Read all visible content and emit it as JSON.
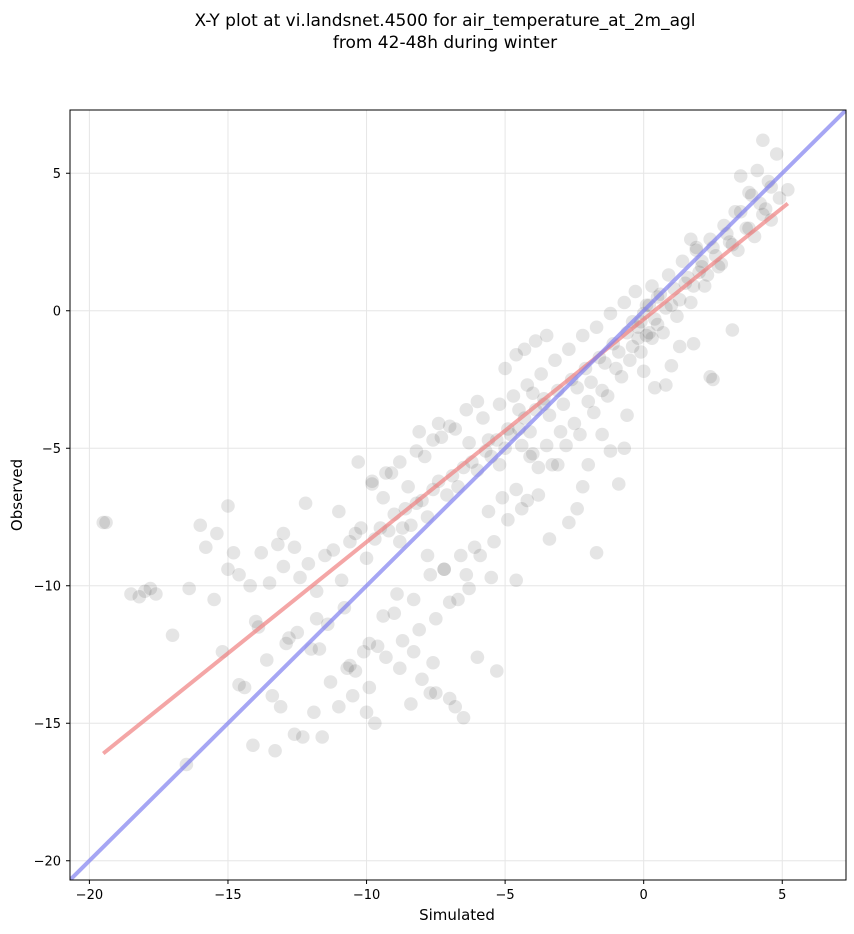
{
  "chart_data": {
    "type": "scatter",
    "title": [
      "X-Y plot at vi.landsnet.4500 for air_temperature_at_2m_agl",
      "from 42-48h during winter"
    ],
    "xlabel": "Simulated",
    "ylabel": "Observed",
    "xlim": [
      -20.7,
      7.3
    ],
    "ylim": [
      -20.7,
      7.3
    ],
    "xticks": [
      -20,
      -15,
      -10,
      -5,
      0,
      5
    ],
    "yticks": [
      -20,
      -15,
      -10,
      -5,
      0,
      5
    ],
    "xtick_labels": [
      "−20",
      "−15",
      "−10",
      "−5",
      "0",
      "5"
    ],
    "ytick_labels": [
      "−20",
      "−15",
      "−10",
      "−5",
      "0",
      "5"
    ],
    "grid": true,
    "points": {
      "color": "#000000",
      "opacity": 0.1,
      "x": [
        -19.5,
        -18.2,
        -17.6,
        -16.4,
        -16.0,
        -15.8,
        -15.4,
        -15.0,
        -14.6,
        -14.2,
        -13.8,
        -13.5,
        -13.2,
        -13.0,
        -12.6,
        -12.4,
        -12.1,
        -11.8,
        -11.5,
        -11.2,
        -10.9,
        -10.6,
        -10.4,
        -10.2,
        -10.0,
        -9.7,
        -9.5,
        -9.2,
        -9.0,
        -8.8,
        -8.6,
        -8.4,
        -8.2,
        -8.0,
        -7.8,
        -7.6,
        -7.4,
        -7.1,
        -6.9,
        -6.7,
        -6.5,
        -6.2,
        -6.0,
        -5.7,
        -5.5,
        -5.3,
        -5.0,
        -4.8,
        -4.5,
        -4.3,
        -4.1,
        -3.9,
        -3.6,
        -3.4,
        -3.1,
        -2.9,
        -2.6,
        -2.4,
        -2.1,
        -1.9,
        -1.6,
        -1.4,
        -1.1,
        -0.9,
        -0.6,
        -0.4,
        -0.2,
        0.0,
        0.2,
        0.4,
        0.6,
        0.8,
        1.1,
        1.3,
        1.6,
        1.8,
        2.1,
        2.3,
        2.6,
        2.8,
        3.1,
        3.4,
        3.7,
        4.0,
        4.3,
        4.6,
        4.9,
        5.2,
        -19.4,
        -18.0,
        -17.0,
        -15.5,
        -14.8,
        -14.0,
        -13.6,
        -12.8,
        -12.0,
        -11.4,
        -10.8,
        -10.1,
        -9.4,
        -8.9,
        -8.3,
        -7.7,
        -7.2,
        -6.6,
        -6.1,
        -5.6,
        -5.1,
        -4.6,
        -4.0,
        -3.5,
        -3.0,
        -2.5,
        -2.0,
        -1.5,
        -1.0,
        -0.5,
        0.1,
        0.5,
        1.0,
        1.5,
        2.0,
        2.5,
        3.0,
        3.5,
        4.2,
        4.8,
        -15.0,
        -13.0,
        -12.2,
        -11.0,
        -10.3,
        -9.8,
        -9.1,
        -8.5,
        -7.9,
        -7.3,
        -6.8,
        -6.3,
        -5.8,
        -5.2,
        -4.7,
        -4.2,
        -3.7,
        -3.2,
        -2.7,
        -2.2,
        -1.7,
        -1.2,
        -0.7,
        -0.3,
        0.3,
        0.9,
        1.4,
        1.9,
        2.4,
        2.9,
        3.3,
        3.9,
        4.5,
        -12.5,
        -11.7,
        -10.7,
        -9.9,
        -9.3,
        -8.7,
        -8.1,
        -7.5,
        -7.0,
        -6.4,
        -5.9,
        -5.4,
        -4.9,
        -4.4,
        -3.8,
        -3.3,
        -2.8,
        -2.3,
        -1.8,
        -1.3,
        -0.8,
        -0.1,
        0.7,
        1.2,
        1.7,
        2.2,
        2.7,
        3.2,
        3.8,
        4.4,
        -14.4,
        -13.4,
        -11.9,
        -10.5,
        -9.6,
        -8.8,
        -8.0,
        -7.5,
        -6.8,
        -6.0,
        -5.3,
        -4.6,
        -4.2,
        -3.4,
        -2.7,
        -2.0,
        -1.2,
        -0.6,
        0.0,
        0.4,
        1.0,
        1.8,
        2.5,
        3.2,
        -11.0,
        -10.0,
        -9.0,
        -8.3,
        -7.6,
        -7.0,
        -6.5,
        -11.8,
        -12.3,
        -13.1,
        -9.4,
        -8.7,
        -7.8,
        -7.2,
        -6.7,
        -9.9,
        -10.6,
        -11.3,
        -12.6,
        -13.3,
        -14.1,
        -8.1,
        -7.4,
        -4.4,
        -4.1,
        -3.8,
        -4.9,
        -5.2,
        -5.6,
        -4.5,
        -4.0,
        -3.6,
        -0.2,
        0.1,
        0.3,
        -0.4,
        -0.1,
        0.2,
        0.5,
        1.9,
        2.1,
        1.7,
        3.5,
        3.8,
        4.1,
        4.6,
        4.3,
        -16.5,
        -17.8,
        -18.5,
        -14.6,
        -15.2,
        -13.9,
        -12.9,
        -11.6,
        -10.4,
        -9.7,
        -8.4,
        -7.7,
        -6.3,
        -5.5,
        -2.4,
        -1.7,
        -0.9,
        -3.1,
        -2.2,
        -1.5,
        -0.7,
        0.8,
        1.3,
        2.4,
        -6.0,
        -5.0,
        -4.6,
        -4.3,
        -3.9,
        -3.5,
        -6.4,
        -7.0,
        -7.6,
        -8.2,
        -8.8,
        -9.3,
        -9.8
      ],
      "y": [
        -7.7,
        -10.4,
        -10.3,
        -10.1,
        -7.8,
        -8.6,
        -8.1,
        -9.4,
        -9.6,
        -10.0,
        -8.8,
        -9.9,
        -8.5,
        -9.3,
        -8.6,
        -9.7,
        -9.2,
        -10.2,
        -8.9,
        -8.7,
        -9.8,
        -8.4,
        -8.1,
        -7.9,
        -9.0,
        -8.3,
        -7.9,
        -8.0,
        -7.4,
        -8.4,
        -7.2,
        -7.8,
        -7.0,
        -6.9,
        -7.5,
        -6.5,
        -6.2,
        -6.7,
        -6.0,
        -6.4,
        -5.7,
        -5.5,
        -5.8,
        -5.1,
        -5.3,
        -4.7,
        -5.0,
        -4.5,
        -4.3,
        -3.9,
        -4.4,
        -3.6,
        -3.2,
        -3.8,
        -2.9,
        -3.4,
        -2.5,
        -2.8,
        -2.1,
        -2.6,
        -1.7,
        -1.9,
        -1.2,
        -1.5,
        -0.8,
        -0.4,
        -1.0,
        -0.1,
        0.2,
        -0.3,
        0.6,
        0.1,
        0.8,
        0.4,
        1.2,
        0.9,
        1.6,
        1.3,
        2.0,
        1.7,
        2.5,
        2.2,
        3.0,
        2.7,
        3.5,
        3.3,
        4.1,
        4.4,
        -7.7,
        -10.2,
        -11.8,
        -10.5,
        -8.8,
        -11.3,
        -12.7,
        -11.9,
        -12.3,
        -11.4,
        -10.8,
        -12.4,
        -11.1,
        -10.3,
        -10.5,
        -9.6,
        -9.4,
        -8.9,
        -8.6,
        -7.3,
        -6.8,
        -6.5,
        -5.2,
        -4.9,
        -4.4,
        -4.1,
        -3.3,
        -2.9,
        -2.1,
        -1.8,
        -0.9,
        -0.5,
        0.2,
        1.0,
        1.4,
        2.3,
        2.8,
        3.6,
        3.9,
        5.7,
        -7.1,
        -8.1,
        -7.0,
        -7.3,
        -5.5,
        -6.2,
        -5.9,
        -6.4,
        -5.3,
        -4.6,
        -4.3,
        -4.8,
        -3.9,
        -3.4,
        -3.1,
        -2.7,
        -2.3,
        -1.8,
        -1.4,
        -0.9,
        -0.6,
        -0.1,
        0.3,
        0.7,
        0.9,
        1.3,
        1.8,
        2.2,
        2.6,
        3.1,
        3.6,
        4.2,
        4.7,
        -11.7,
        -12.3,
        -13.0,
        -13.7,
        -12.6,
        -12.0,
        -11.6,
        -11.2,
        -10.6,
        -9.6,
        -8.9,
        -8.4,
        -7.6,
        -7.2,
        -6.7,
        -5.6,
        -4.9,
        -4.5,
        -3.7,
        -3.1,
        -2.4,
        -1.5,
        -0.8,
        -0.2,
        0.3,
        0.9,
        1.6,
        2.4,
        3.0,
        3.7,
        -13.7,
        -14.0,
        -14.6,
        -14.0,
        -12.2,
        -13.0,
        -13.4,
        -13.9,
        -14.4,
        -12.6,
        -13.1,
        -9.8,
        -6.9,
        -8.3,
        -7.7,
        -5.6,
        -5.1,
        -3.8,
        -2.2,
        -2.8,
        -2.0,
        -1.2,
        -2.5,
        -0.7,
        -14.4,
        -14.6,
        -11.0,
        -12.4,
        -12.8,
        -14.1,
        -14.8,
        -11.2,
        -15.5,
        -14.4,
        -6.8,
        -7.9,
        -8.9,
        -9.4,
        -10.5,
        -12.1,
        -12.9,
        -13.5,
        -15.4,
        -16.0,
        -15.8,
        -4.4,
        -4.1,
        -4.9,
        -5.3,
        -5.7,
        -4.3,
        -5.6,
        -4.7,
        -3.6,
        -3.0,
        -3.4,
        -0.6,
        0.2,
        -1.0,
        -1.3,
        -0.4,
        -0.8,
        0.5,
        2.3,
        1.8,
        2.6,
        4.9,
        4.3,
        5.1,
        4.5,
        6.2,
        -16.5,
        -10.1,
        -10.3,
        -13.6,
        -12.4,
        -11.5,
        -12.1,
        -15.5,
        -13.1,
        -15.0,
        -14.3,
        -13.9,
        -10.1,
        -9.7,
        -7.2,
        -8.8,
        -6.3,
        -5.6,
        -6.4,
        -4.5,
        -5.0,
        -2.7,
        -1.3,
        -2.4,
        -3.3,
        -2.1,
        -1.6,
        -1.4,
        -1.1,
        -0.9,
        -3.6,
        -4.2,
        -4.7,
        -5.1,
        -5.5,
        -5.9,
        -6.3
      ]
    },
    "lines": [
      {
        "color": "#f08080",
        "x": [
          -19.5,
          5.2
        ],
        "y": [
          -16.1,
          3.9
        ]
      },
      {
        "color": "#8080f0",
        "x": [
          -21.0,
          7.5
        ],
        "y": [
          -21.0,
          7.5
        ]
      }
    ]
  }
}
